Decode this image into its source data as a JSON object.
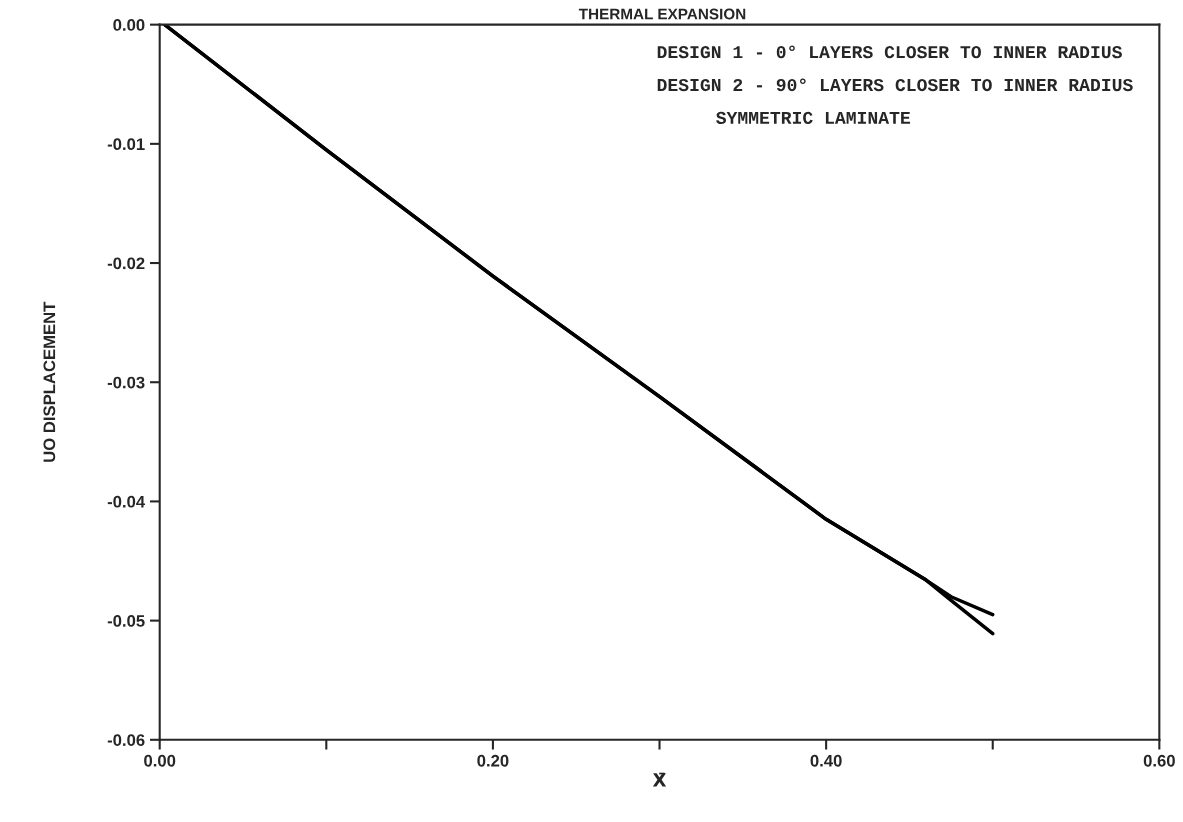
{
  "chart_data": {
    "type": "line",
    "title": "THERMAL EXPANSION",
    "xlabel": "X̄",
    "ylabel": "UO DISPLACEMENT",
    "annotations": [
      "DESIGN 1 - 0° LAYERS CLOSER TO INNER RADIUS",
      "DESIGN 2 - 90° LAYERS CLOSER TO INNER RADIUS",
      "SYMMETRIC LAMINATE"
    ],
    "series": [
      {
        "color": "#000000",
        "x": [
          0.003,
          0.1,
          0.2,
          0.3,
          0.4,
          0.46,
          0.475,
          0.5
        ],
        "values": [
          0,
          -0.0105,
          -0.0211,
          -0.0312,
          -0.0415,
          -0.0466,
          -0.048,
          -0.0495
        ]
      },
      {
        "color": "#000000",
        "x": [
          0.003,
          0.1,
          0.2,
          0.3,
          0.4,
          0.46,
          0.475,
          0.5
        ],
        "values": [
          0,
          -0.0105,
          -0.0211,
          -0.0312,
          -0.0415,
          -0.0466,
          -0.0483,
          -0.0511
        ]
      }
    ],
    "xlim": [
      0,
      0.6
    ],
    "ylim": [
      -0.06,
      0
    ],
    "xticks": [
      {
        "value": 0,
        "label": "0.00"
      },
      {
        "value": 0.1,
        "label": null
      },
      {
        "value": 0.2,
        "label": "0.20"
      },
      {
        "value": 0.3,
        "label": null
      },
      {
        "value": 0.4,
        "label": "0.40"
      },
      {
        "value": 0.5,
        "label": null
      },
      {
        "value": 0.6,
        "label": "0.60"
      }
    ],
    "yticks": [
      {
        "value": 0,
        "label": "0.00"
      },
      {
        "value": -0.01,
        "label": "-0.01"
      },
      {
        "value": -0.02,
        "label": "-0.02"
      },
      {
        "value": -0.03,
        "label": "-0.03"
      },
      {
        "value": -0.04,
        "label": "-0.04"
      },
      {
        "value": -0.05,
        "label": "-0.05"
      },
      {
        "value": -0.06,
        "label": "-0.06"
      }
    ],
    "grid": false,
    "legend": false,
    "marker": "none",
    "line_style": "solid"
  }
}
